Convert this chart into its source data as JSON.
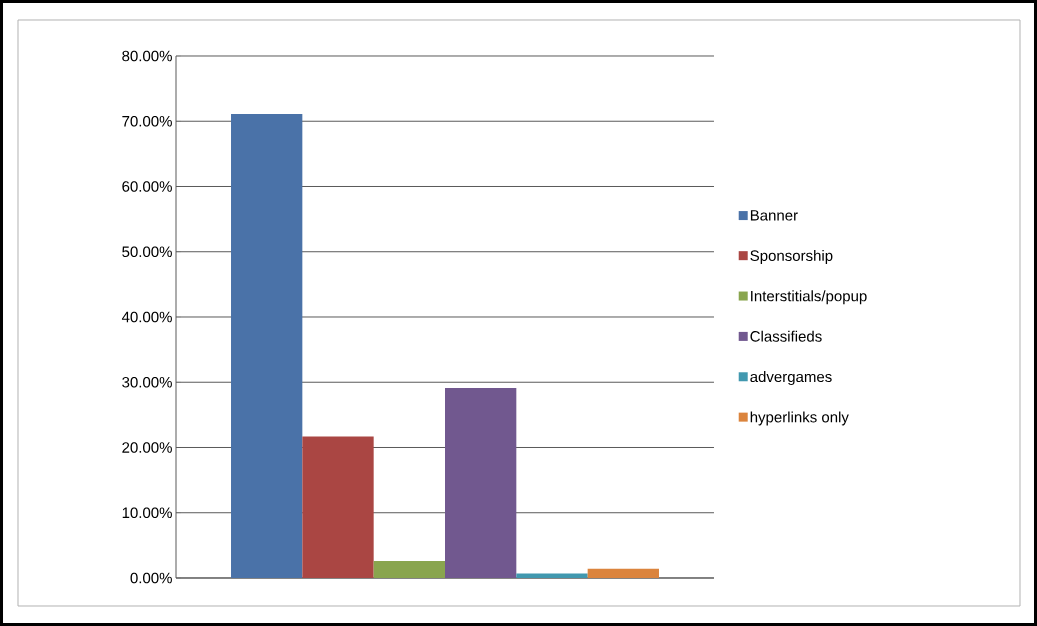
{
  "chart_data": {
    "type": "bar",
    "categories": [
      null
    ],
    "series": [
      {
        "name": "Banner",
        "color": "#4a72a8",
        "values": [
          71.1
        ]
      },
      {
        "name": "Sponsorship",
        "color": "#aa4643",
        "values": [
          21.7
        ]
      },
      {
        "name": "Interstitials/popup",
        "color": "#89a54e",
        "values": [
          2.6
        ]
      },
      {
        "name": "Classifieds",
        "color": "#71588f",
        "values": [
          29.1
        ]
      },
      {
        "name": "advergames",
        "color": "#4198af",
        "values": [
          0.7
        ]
      },
      {
        "name": "hyperlinks only",
        "color": "#db843d",
        "values": [
          1.4
        ]
      }
    ],
    "ylim": [
      0,
      80
    ],
    "yticks": [
      {
        "value": 0,
        "label": "0.00%"
      },
      {
        "value": 10,
        "label": "10.00%"
      },
      {
        "value": 20,
        "label": "20.00%"
      },
      {
        "value": 30,
        "label": "30.00%"
      },
      {
        "value": 40,
        "label": "40.00%"
      },
      {
        "value": 50,
        "label": "50.00%"
      },
      {
        "value": 60,
        "label": "60.00%"
      },
      {
        "value": 70,
        "label": "70.00%"
      },
      {
        "value": 80,
        "label": "80.00%"
      }
    ],
    "grid": "y",
    "legend": "right"
  }
}
